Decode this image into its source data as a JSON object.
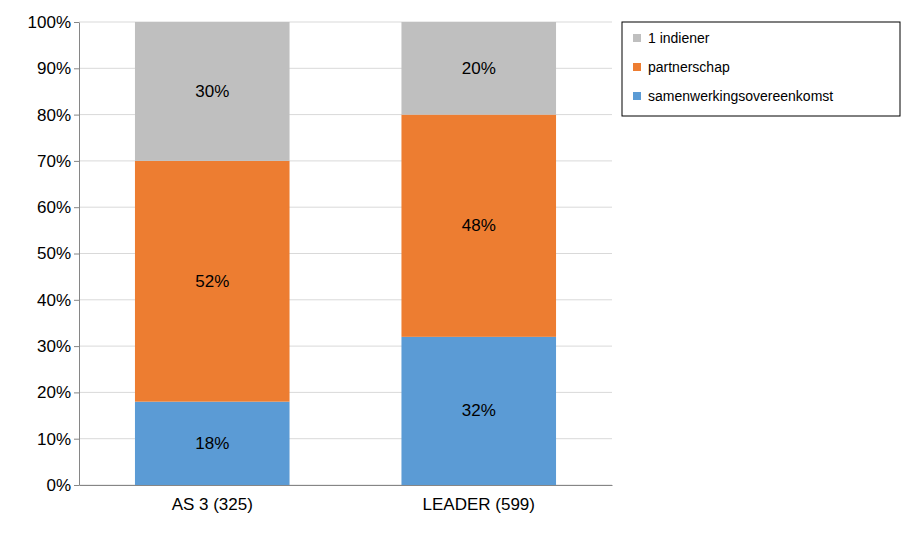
{
  "chart_data": {
    "type": "bar",
    "stacked": true,
    "categories": [
      "AS 3 (325)",
      "LEADER (599)"
    ],
    "series": [
      {
        "name": "samenwerkingsovereenkomst",
        "color": "#5b9bd5",
        "values": [
          18,
          32
        ],
        "value_labels": [
          "18%",
          "32%"
        ]
      },
      {
        "name": "partnerschap",
        "color": "#ed7d31",
        "values": [
          52,
          48
        ],
        "value_labels": [
          "52%",
          "48%"
        ]
      },
      {
        "name": "1 indiener",
        "color": "#bfbfbf",
        "values": [
          30,
          20
        ],
        "value_labels": [
          "30%",
          "20%"
        ]
      }
    ],
    "ylim": [
      0,
      100
    ],
    "yticks": [
      {
        "value": 0,
        "label": "0%"
      },
      {
        "value": 10,
        "label": "10%"
      },
      {
        "value": 20,
        "label": "20%"
      },
      {
        "value": 30,
        "label": "30%"
      },
      {
        "value": 40,
        "label": "40%"
      },
      {
        "value": 50,
        "label": "50%"
      },
      {
        "value": 60,
        "label": "60%"
      },
      {
        "value": 70,
        "label": "70%"
      },
      {
        "value": 80,
        "label": "80%"
      },
      {
        "value": 90,
        "label": "90%"
      },
      {
        "value": 100,
        "label": "100%"
      }
    ],
    "grid": true,
    "legend": "top-right",
    "data_labels": true
  }
}
